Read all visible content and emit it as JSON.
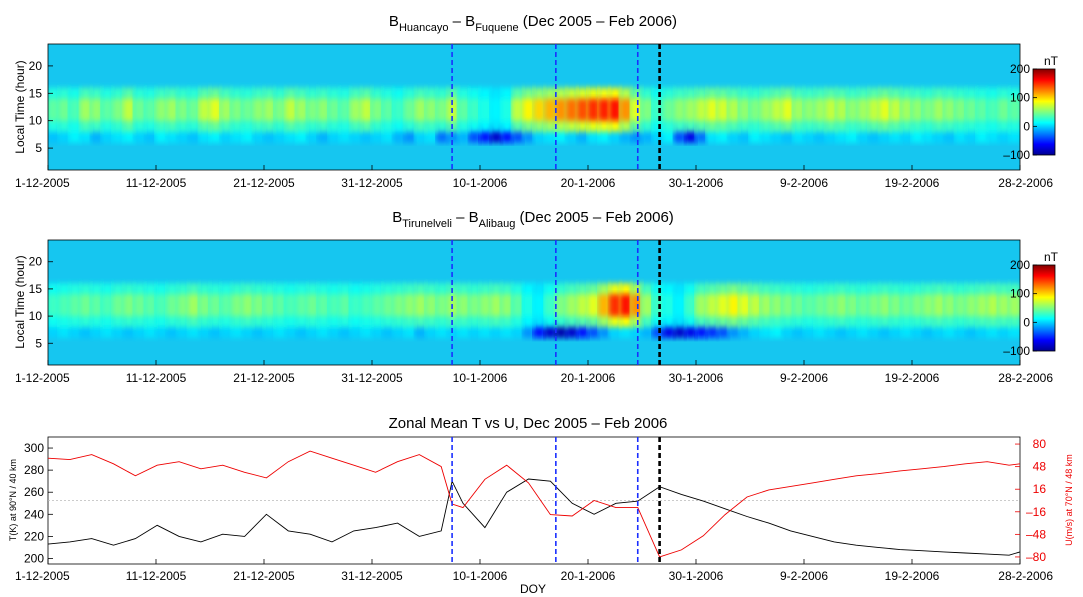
{
  "chart_data": [
    {
      "type": "heatmap",
      "title": {
        "a": "B",
        "a_sub": "Huancayo",
        "dash": " – ",
        "b": "B",
        "b_sub": "Fuquene",
        "suffix": " (Dec 2005 – Feb 2006)"
      },
      "ylabel": "Local Time (hour)",
      "ylim": [
        1,
        24
      ],
      "yticks": [
        "5",
        "10",
        "15",
        "20"
      ],
      "xticks": [
        "1-12-2005",
        "11-12-2005",
        "21-12-2005",
        "31-12-2005",
        "10-1-2006",
        "20-1-2006",
        "30-1-2006",
        "9-2-2006",
        "19-2-2006",
        "28-2-2006"
      ],
      "colorbar": {
        "unit": "nT",
        "ticks": [
          "200",
          "100",
          "0",
          "–100"
        ],
        "range": [
          -100,
          200
        ]
      },
      "blue_dashed_day": [
        37,
        46.5,
        54
      ],
      "black_dashed_day": 56,
      "band_values": [
        40,
        45,
        35,
        60,
        55,
        40,
        50,
        70,
        45,
        40,
        55,
        60,
        50,
        45,
        70,
        80,
        60,
        50,
        45,
        55,
        60,
        50,
        70,
        60,
        50,
        55,
        45,
        40,
        60,
        70,
        50,
        40,
        30,
        45,
        60,
        55,
        50,
        70,
        40,
        30,
        20,
        10,
        20,
        70,
        90,
        100,
        110,
        120,
        130,
        140,
        150,
        155,
        160,
        120,
        80,
        50,
        30,
        45,
        55,
        60,
        70,
        80,
        75,
        65,
        55,
        50,
        60,
        70,
        80,
        60,
        55,
        60,
        70,
        65,
        55,
        60,
        70,
        80,
        70,
        60,
        55,
        50,
        60,
        55,
        50,
        45,
        40,
        35,
        45,
        40
      ],
      "low_values": [
        -5,
        0,
        10,
        5,
        -10,
        0,
        5,
        10,
        0,
        -5,
        10,
        5,
        0,
        -5,
        5,
        10,
        0,
        5,
        10,
        0,
        -5,
        0,
        5,
        10,
        0,
        -10,
        0,
        5,
        0,
        -5,
        0,
        5,
        -10,
        -20,
        0,
        5,
        -30,
        -20,
        -10,
        -40,
        -60,
        -80,
        -60,
        -40,
        -20,
        0,
        5,
        10,
        0,
        -10,
        5,
        10,
        0,
        -10,
        -20,
        -10,
        0,
        10,
        -40,
        -70,
        -30,
        5,
        10,
        0,
        -5,
        10,
        5,
        0,
        -5,
        5,
        0,
        -5,
        0,
        5,
        10,
        0,
        -5,
        0,
        5,
        0,
        10,
        5,
        0,
        -5,
        5,
        0,
        10,
        5,
        0,
        5
      ]
    },
    {
      "type": "heatmap",
      "title": {
        "a": "B",
        "a_sub": "Tirunelveli",
        "dash": " – ",
        "b": "B",
        "b_sub": "Alibaug",
        "suffix": " (Dec 2005 – Feb 2006)"
      },
      "ylabel": "Local Time (hour)",
      "ylim": [
        1,
        24
      ],
      "yticks": [
        "5",
        "10",
        "15",
        "20"
      ],
      "xticks": [
        "1-12-2005",
        "11-12-2005",
        "21-12-2005",
        "31-12-2005",
        "10-1-2006",
        "20-1-2006",
        "30-1-2006",
        "9-2-2006",
        "19-2-2006",
        "28-2-2006"
      ],
      "colorbar": {
        "unit": "nT",
        "ticks": [
          "200",
          "100",
          "0",
          "–100"
        ],
        "range": [
          -100,
          200
        ]
      },
      "blue_dashed_day": [
        37,
        46.5,
        54
      ],
      "black_dashed_day": 56,
      "band_values": [
        30,
        35,
        40,
        45,
        40,
        35,
        45,
        50,
        45,
        40,
        35,
        45,
        50,
        60,
        50,
        45,
        40,
        50,
        55,
        50,
        45,
        40,
        35,
        40,
        45,
        40,
        35,
        40,
        30,
        35,
        40,
        45,
        50,
        55,
        60,
        55,
        50,
        60,
        55,
        50,
        55,
        60,
        55,
        40,
        20,
        10,
        30,
        50,
        60,
        70,
        80,
        110,
        150,
        160,
        120,
        60,
        30,
        20,
        10,
        30,
        60,
        70,
        80,
        90,
        80,
        70,
        60,
        55,
        50,
        45,
        40,
        45,
        50,
        55,
        50,
        45,
        50,
        55,
        50,
        45,
        50,
        55,
        60,
        55,
        50,
        55,
        60,
        65,
        60,
        60
      ],
      "low_values": [
        0,
        5,
        0,
        -5,
        0,
        5,
        0,
        -5,
        0,
        5,
        0,
        -5,
        0,
        5,
        0,
        -5,
        0,
        5,
        0,
        -5,
        0,
        5,
        0,
        -5,
        0,
        5,
        0,
        -5,
        0,
        5,
        0,
        -5,
        0,
        5,
        -10,
        0,
        5,
        0,
        5,
        0,
        5,
        0,
        5,
        0,
        -20,
        -60,
        -80,
        -90,
        -80,
        -60,
        -40,
        -20,
        0,
        5,
        0,
        -10,
        -40,
        -70,
        -80,
        -70,
        -60,
        -50,
        -40,
        -20,
        -10,
        0,
        5,
        10,
        0,
        -5,
        0,
        5,
        0,
        -5,
        0,
        5,
        0,
        -5,
        0,
        5,
        0,
        -5,
        0,
        5,
        0,
        -5,
        0,
        5,
        0,
        5
      ]
    },
    {
      "type": "line",
      "title": "Zonal Mean T vs U, Dec 2005 – Feb 2006",
      "xlabel": "DOY",
      "ylabel_left": "T(K) at 90°N / 40 km",
      "ylabel_right": "U(m/s) at 70°N / 48 km",
      "yticks_left": [
        "200",
        "220",
        "240",
        "260",
        "280",
        "300"
      ],
      "yticks_right": [
        "–80",
        "–48",
        "–16",
        "16",
        "48",
        "80"
      ],
      "ylim_left": [
        195,
        310
      ],
      "ylim_right": [
        -90,
        90
      ],
      "xticks": [
        "1-12-2005",
        "11-12-2005",
        "21-12-2005",
        "31-12-2005",
        "10-1-2006",
        "20-1-2006",
        "30-1-2006",
        "9-2-2006",
        "19-2-2006",
        "28-2-2006"
      ],
      "blue_dashed_day": [
        37,
        46.5,
        54
      ],
      "black_dashed_day": 56,
      "colors": {
        "T": "#000000",
        "U": "#ee0000",
        "blue_line": "#1a2fff",
        "black_line": "#000000",
        "zero_line": "#bbbbbb"
      },
      "series": [
        {
          "name": "",
          "axis": "left",
          "color": "#000000",
          "x": [
            0,
            2,
            4,
            6,
            8,
            10,
            12,
            14,
            16,
            18,
            20,
            22,
            24,
            26,
            28,
            30,
            32,
            34,
            36,
            37,
            38,
            40,
            42,
            44,
            46,
            48,
            50,
            52,
            54,
            56,
            58,
            60,
            62,
            64,
            66,
            68,
            70,
            72,
            74,
            76,
            78,
            80,
            82,
            84,
            86,
            88,
            89
          ],
          "y": [
            213,
            215,
            218,
            212,
            218,
            230,
            220,
            215,
            222,
            220,
            240,
            225,
            222,
            215,
            225,
            228,
            232,
            220,
            225,
            270,
            250,
            228,
            260,
            272,
            270,
            250,
            240,
            250,
            252,
            265,
            258,
            252,
            245,
            238,
            232,
            225,
            220,
            215,
            212,
            210,
            208,
            207,
            206,
            205,
            204,
            203,
            206
          ]
        },
        {
          "name": "",
          "axis": "right",
          "color": "#ee0000",
          "x": [
            0,
            2,
            4,
            6,
            8,
            10,
            12,
            14,
            16,
            18,
            20,
            22,
            24,
            26,
            28,
            30,
            32,
            34,
            36,
            37,
            38,
            40,
            42,
            44,
            46,
            48,
            50,
            52,
            54,
            56,
            58,
            60,
            62,
            64,
            66,
            68,
            70,
            72,
            74,
            76,
            78,
            80,
            82,
            84,
            86,
            88,
            89
          ],
          "y": [
            60,
            58,
            65,
            52,
            35,
            50,
            55,
            45,
            50,
            40,
            32,
            55,
            70,
            60,
            50,
            40,
            55,
            65,
            48,
            -5,
            -10,
            30,
            50,
            25,
            -20,
            -22,
            0,
            -10,
            -10,
            -80,
            -70,
            -50,
            -20,
            5,
            15,
            20,
            25,
            30,
            35,
            38,
            42,
            45,
            48,
            52,
            55,
            50,
            52
          ]
        }
      ]
    }
  ]
}
